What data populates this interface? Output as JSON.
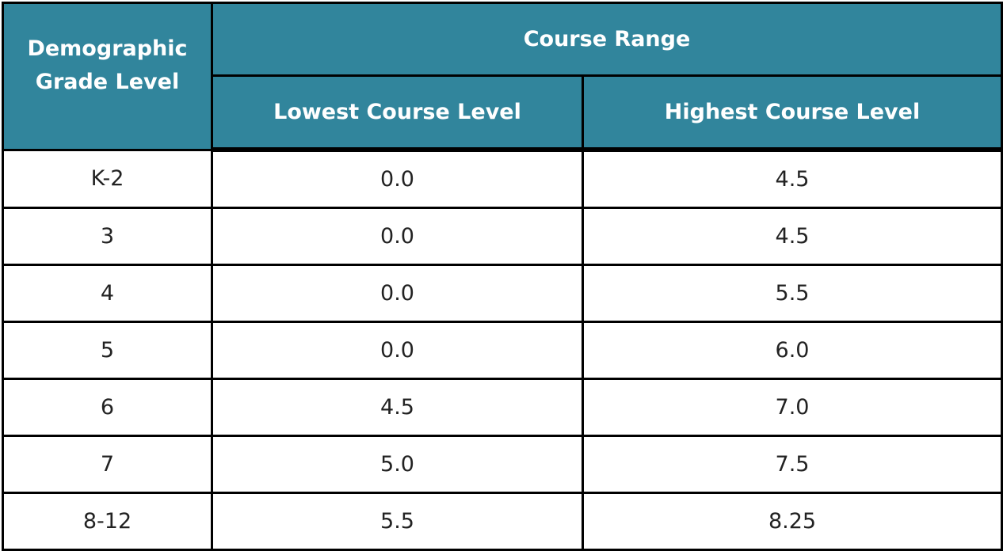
{
  "header": {
    "grade_line1": "Demographic",
    "grade_line2": "Grade Level",
    "course_range": "Course Range",
    "lowest": "Lowest Course Level",
    "highest": "Highest Course Level"
  },
  "rows": [
    {
      "grade": "K-2",
      "lowest": "0.0",
      "highest": "4.5"
    },
    {
      "grade": "3",
      "lowest": "0.0",
      "highest": "4.5"
    },
    {
      "grade": "4",
      "lowest": "0.0",
      "highest": "5.5"
    },
    {
      "grade": "5",
      "lowest": "0.0",
      "highest": "6.0"
    },
    {
      "grade": "6",
      "lowest": "4.5",
      "highest": "7.0"
    },
    {
      "grade": "7",
      "lowest": "5.0",
      "highest": "7.5"
    },
    {
      "grade": "8-12",
      "lowest": "5.5",
      "highest": "8.25"
    }
  ],
  "colors": {
    "header_bg": "#31859c",
    "header_text": "#ffffff",
    "border": "#000000"
  }
}
